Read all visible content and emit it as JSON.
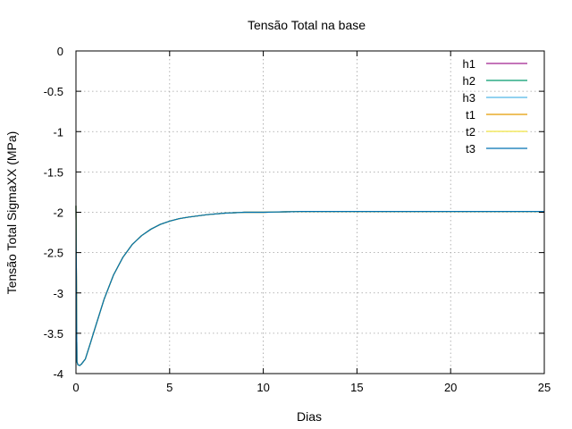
{
  "chart_data": {
    "type": "line",
    "title": "Tensão Total na base",
    "xlabel": "Dias",
    "ylabel": "Tensão Total SigmaXX (MPa)",
    "xlim": [
      0,
      25
    ],
    "ylim": [
      -4,
      0
    ],
    "xticks": [
      0,
      5,
      10,
      15,
      20,
      25
    ],
    "xtick_labels": [
      "0",
      "5",
      "10",
      "15",
      "20",
      "25"
    ],
    "yticks": [
      0,
      -0.5,
      -1,
      -1.5,
      -2,
      -2.5,
      -3,
      -3.5,
      -4
    ],
    "ytick_labels": [
      "0",
      "-0.5",
      "-1",
      "-1.5",
      "-2",
      "-2.5",
      "-3",
      "-3.5",
      "-4"
    ],
    "grid": true,
    "legend_position": "top-right",
    "x": [
      0,
      0.05,
      0.1,
      0.2,
      0.3,
      0.5,
      0.8,
      1.0,
      1.5,
      2.0,
      2.5,
      3.0,
      3.5,
      4.0,
      4.5,
      5.0,
      5.5,
      6.0,
      7.0,
      8.0,
      9.0,
      10.0,
      12.0,
      14.0,
      16.0,
      18.0,
      20.0,
      22.0,
      25.0
    ],
    "series": [
      {
        "name": "h1",
        "color": "#a0208f",
        "values": [
          -1.92,
          -3.85,
          -3.89,
          -3.9,
          -3.88,
          -3.82,
          -3.6,
          -3.45,
          -3.08,
          -2.78,
          -2.56,
          -2.4,
          -2.29,
          -2.21,
          -2.15,
          -2.11,
          -2.08,
          -2.06,
          -2.03,
          -2.01,
          -2.0,
          -2.0,
          -1.99,
          -1.99,
          -1.99,
          -1.99,
          -1.99,
          -1.99,
          -1.99
        ]
      },
      {
        "name": "h2",
        "color": "#009a6e",
        "values": [
          -1.92,
          -3.85,
          -3.89,
          -3.9,
          -3.88,
          -3.82,
          -3.6,
          -3.45,
          -3.08,
          -2.78,
          -2.56,
          -2.4,
          -2.29,
          -2.21,
          -2.15,
          -2.11,
          -2.08,
          -2.06,
          -2.03,
          -2.01,
          -2.0,
          -2.0,
          -1.99,
          -1.99,
          -1.99,
          -1.99,
          -1.99,
          -1.99,
          -1.99
        ]
      },
      {
        "name": "h3",
        "color": "#52b6e6",
        "values": [
          -1.92,
          -3.85,
          -3.89,
          -3.9,
          -3.88,
          -3.82,
          -3.6,
          -3.45,
          -3.08,
          -2.78,
          -2.56,
          -2.4,
          -2.29,
          -2.21,
          -2.15,
          -2.11,
          -2.08,
          -2.06,
          -2.03,
          -2.01,
          -2.0,
          -2.0,
          -1.99,
          -1.99,
          -1.99,
          -1.99,
          -1.99,
          -1.99,
          -1.99
        ]
      },
      {
        "name": "t1",
        "color": "#e39c00",
        "values": [
          -1.92,
          -3.85,
          -3.89,
          -3.9,
          -3.88,
          -3.82,
          -3.6,
          -3.45,
          -3.08,
          -2.78,
          -2.56,
          -2.4,
          -2.29,
          -2.21,
          -2.15,
          -2.11,
          -2.08,
          -2.06,
          -2.03,
          -2.01,
          -2.0,
          -2.0,
          -1.99,
          -1.99,
          -1.99,
          -1.99,
          -1.99,
          -1.99,
          -1.99
        ]
      },
      {
        "name": "t2",
        "color": "#f0e442",
        "values": [
          -1.92,
          -3.85,
          -3.89,
          -3.9,
          -3.88,
          -3.82,
          -3.6,
          -3.45,
          -3.08,
          -2.78,
          -2.56,
          -2.4,
          -2.29,
          -2.21,
          -2.15,
          -2.11,
          -2.08,
          -2.06,
          -2.03,
          -2.01,
          -2.0,
          -2.0,
          -1.99,
          -1.99,
          -1.99,
          -1.99,
          -1.99,
          -1.99,
          -1.99
        ]
      },
      {
        "name": "t3",
        "color": "#0072b2",
        "values": [
          -1.92,
          -3.85,
          -3.89,
          -3.9,
          -3.88,
          -3.82,
          -3.6,
          -3.45,
          -3.08,
          -2.78,
          -2.56,
          -2.4,
          -2.29,
          -2.21,
          -2.15,
          -2.11,
          -2.08,
          -2.06,
          -2.03,
          -2.01,
          -2.0,
          -2.0,
          -1.99,
          -1.99,
          -1.99,
          -1.99,
          -1.99,
          -1.99,
          -1.99
        ]
      }
    ]
  }
}
